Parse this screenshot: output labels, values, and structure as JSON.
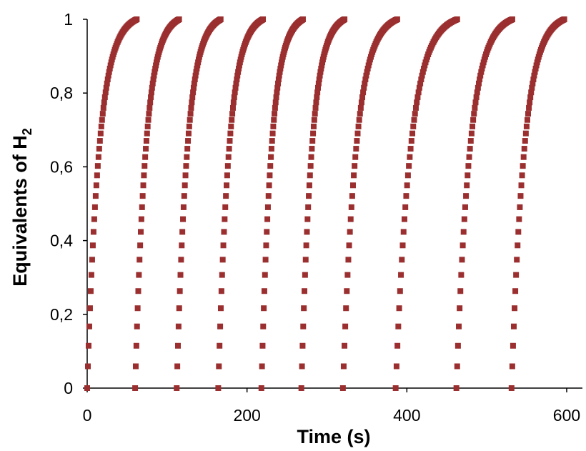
{
  "chart_data": {
    "type": "scatter",
    "title": "",
    "xlabel": "Time (s)",
    "ylabel_main": "Equivalents of  H",
    "ylabel_sub": "2",
    "xlim": [
      0,
      620
    ],
    "ylim": [
      0,
      1
    ],
    "xticks": [
      0,
      200,
      400,
      600
    ],
    "yticks": [
      0,
      0.2,
      0.4,
      0.6,
      0.8,
      1
    ],
    "xtick_labels": [
      "0",
      "200",
      "400",
      "600"
    ],
    "ytick_labels": [
      "0",
      "0,2",
      "0,4",
      "0,6",
      "0,8",
      "1"
    ],
    "grid": false,
    "legend": "none",
    "marker_color": "#9b2f2f",
    "series": [
      {
        "t_start": 0,
        "t_end": 62
      },
      {
        "t_start": 60,
        "t_end": 115
      },
      {
        "t_start": 112,
        "t_end": 167
      },
      {
        "t_start": 164,
        "t_end": 220
      },
      {
        "t_start": 218,
        "t_end": 270
      },
      {
        "t_start": 268,
        "t_end": 322
      },
      {
        "t_start": 320,
        "t_end": 388
      },
      {
        "t_start": 386,
        "t_end": 463
      },
      {
        "t_start": 462,
        "t_end": 532
      },
      {
        "t_start": 531,
        "t_end": 597
      }
    ]
  }
}
